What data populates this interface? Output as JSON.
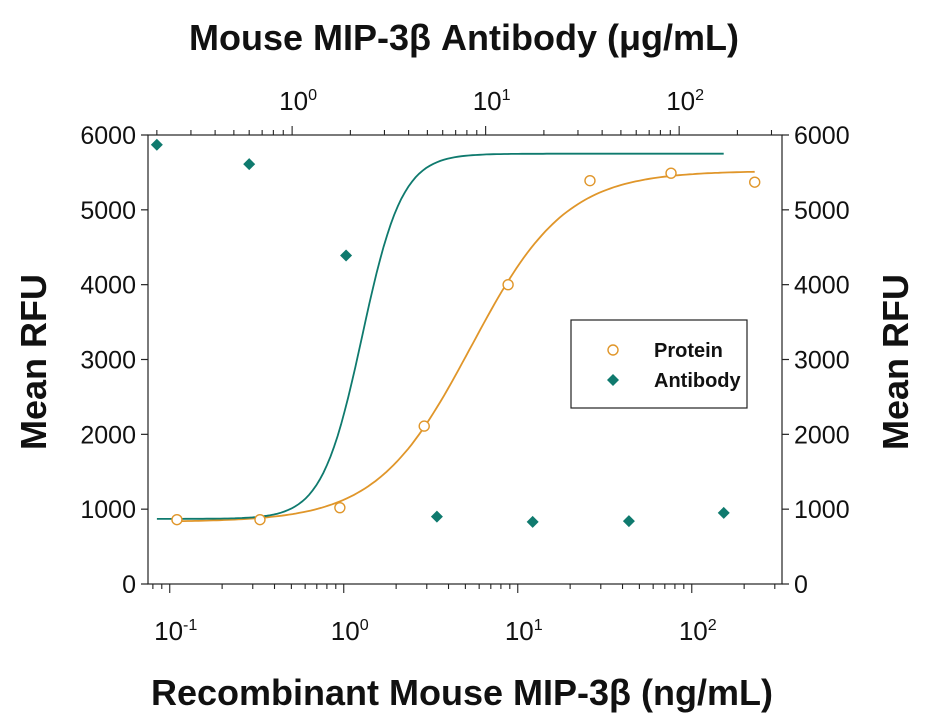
{
  "chart_data": {
    "type": "scatter",
    "title": "Mouse MIP-3β Antibody (μg/mL)",
    "xlabel": "Recombinant Mouse MIP-3β (ng/mL)",
    "ylabel": "Mean RFU",
    "ylabel_right": "Mean RFU",
    "x_scale": "log",
    "x_top_scale": "log",
    "xlim": [
      0.075,
      330
    ],
    "x_top_lim": [
      0.18,
      340
    ],
    "ylim": [
      0,
      6000
    ],
    "yticks": [
      0,
      1000,
      2000,
      3000,
      4000,
      5000,
      6000
    ],
    "xticks": [
      {
        "value": 0.1,
        "base": "10",
        "exp": "-1"
      },
      {
        "value": 1,
        "base": "10",
        "exp": "0"
      },
      {
        "value": 10,
        "base": "10",
        "exp": "1"
      },
      {
        "value": 100,
        "base": "10",
        "exp": "2"
      }
    ],
    "xticks_top": [
      {
        "value": 1,
        "base": "10",
        "exp": "0"
      },
      {
        "value": 10,
        "base": "10",
        "exp": "1"
      },
      {
        "value": 100,
        "base": "10",
        "exp": "2"
      }
    ],
    "grid": false,
    "legend_position": "center-right",
    "series": [
      {
        "name": "Protein",
        "axis": "bottom",
        "marker": "open-circle",
        "color": "#E0962A",
        "x": [
          0.11,
          0.33,
          0.95,
          2.9,
          8.8,
          26,
          76,
          230
        ],
        "y": [
          860,
          860,
          1020,
          2110,
          4000,
          5390,
          5490,
          5370
        ],
        "fit": {
          "bottom": 830,
          "top": 5520,
          "ec50": 5.4,
          "hill": 1.6,
          "x_range": [
            0.11,
            230
          ]
        }
      },
      {
        "name": "Antibody",
        "axis": "top",
        "marker": "filled-diamond",
        "color": "#0F7A6E",
        "x": [
          0.2,
          0.6,
          1.9,
          5.6,
          17.5,
          55,
          170
        ],
        "y": [
          5870,
          5610,
          4390,
          900,
          830,
          840,
          950
        ],
        "fit": {
          "bottom": 870,
          "top": 5750,
          "ec50": 2.3,
          "hill": 4.2,
          "x_range": [
            0.2,
            170
          ]
        }
      }
    ]
  }
}
